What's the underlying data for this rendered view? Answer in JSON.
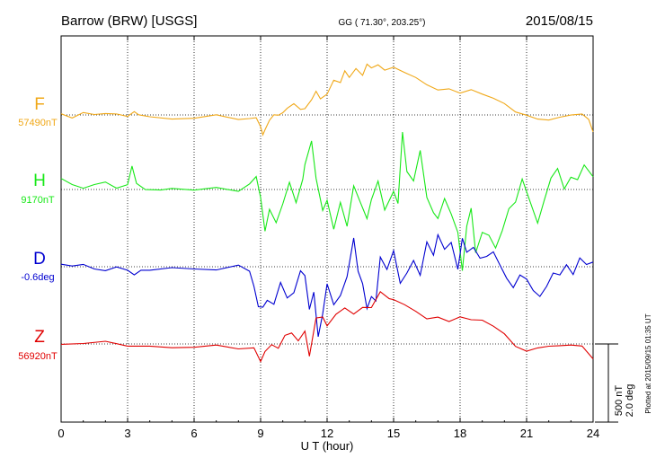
{
  "header": {
    "station": "Barrow (BRW)  [USGS]",
    "coords": "GG ( 71.30°, 203.25°)",
    "date": "2015/08/15"
  },
  "footer_note": "Plotted at 2015/09/15 01:35 UT",
  "scale_bar": {
    "line1": "500 nT",
    "line2": "2.0 deg",
    "value_nT": 500,
    "value_deg": 2.0
  },
  "chart_data": {
    "type": "line",
    "xlabel": "U T (hour)",
    "xlim": [
      0,
      24
    ],
    "x_ticks": [
      0,
      3,
      6,
      9,
      12,
      15,
      18,
      21,
      24
    ],
    "x_tick_labels": [
      "0",
      "3",
      "6",
      "9",
      "12",
      "15",
      "18",
      "21",
      "24"
    ],
    "grid": true,
    "series": [
      {
        "name": "F",
        "baseline_label": "57490nT",
        "baseline": 57490,
        "unit": "nT",
        "color": "#F0A818",
        "points": [
          [
            0,
            -10
          ],
          [
            0.5,
            -5
          ],
          [
            1,
            0
          ],
          [
            1.5,
            5
          ],
          [
            2,
            5
          ],
          [
            2.5,
            5
          ],
          [
            3,
            -5
          ],
          [
            3.3,
            10
          ],
          [
            3.5,
            -5
          ],
          [
            4,
            -10
          ],
          [
            5,
            -10
          ],
          [
            6,
            -10
          ],
          [
            7,
            -10
          ],
          [
            8,
            -12
          ],
          [
            8.5,
            -12
          ],
          [
            8.8,
            -20
          ],
          [
            9,
            -60
          ],
          [
            9.1,
            -130
          ],
          [
            9.2,
            -90
          ],
          [
            9.4,
            -40
          ],
          [
            9.6,
            10
          ],
          [
            9.8,
            0
          ],
          [
            10,
            20
          ],
          [
            10.2,
            40
          ],
          [
            10.5,
            60
          ],
          [
            10.8,
            30
          ],
          [
            11,
            40
          ],
          [
            11.3,
            80
          ],
          [
            11.5,
            140
          ],
          [
            11.7,
            100
          ],
          [
            12,
            150
          ],
          [
            12.3,
            230
          ],
          [
            12.6,
            200
          ],
          [
            12.8,
            280
          ],
          [
            13,
            230
          ],
          [
            13.3,
            300
          ],
          [
            13.6,
            270
          ],
          [
            13.8,
            340
          ],
          [
            14,
            300
          ],
          [
            14.3,
            330
          ],
          [
            14.6,
            290
          ],
          [
            15,
            320
          ],
          [
            15.5,
            270
          ],
          [
            16,
            230
          ],
          [
            16.5,
            200
          ],
          [
            17,
            170
          ],
          [
            17.5,
            160
          ],
          [
            18,
            140
          ],
          [
            18.5,
            150
          ],
          [
            19,
            120
          ],
          [
            19.5,
            100
          ],
          [
            20,
            60
          ],
          [
            20.5,
            30
          ],
          [
            21,
            0
          ],
          [
            21.5,
            -30
          ],
          [
            22,
            -20
          ],
          [
            22.5,
            -15
          ],
          [
            23,
            -10
          ],
          [
            23.5,
            0
          ],
          [
            23.8,
            -40
          ],
          [
            24,
            -120
          ]
        ]
      },
      {
        "name": "H",
        "baseline_label": "9170nT",
        "baseline": 9170,
        "unit": "nT",
        "color": "#18E818",
        "points": [
          [
            0,
            60
          ],
          [
            0.5,
            40
          ],
          [
            1,
            10
          ],
          [
            1.5,
            30
          ],
          [
            2,
            40
          ],
          [
            2.5,
            20
          ],
          [
            3,
            40
          ],
          [
            3.2,
            150
          ],
          [
            3.4,
            40
          ],
          [
            3.8,
            0
          ],
          [
            4.5,
            -20
          ],
          [
            5,
            10
          ],
          [
            6,
            0
          ],
          [
            7,
            10
          ],
          [
            8,
            0
          ],
          [
            8.5,
            30
          ],
          [
            8.8,
            80
          ],
          [
            9,
            -60
          ],
          [
            9.2,
            -250
          ],
          [
            9.4,
            -120
          ],
          [
            9.7,
            -200
          ],
          [
            10,
            -80
          ],
          [
            10.3,
            30
          ],
          [
            10.6,
            -80
          ],
          [
            10.9,
            80
          ],
          [
            11,
            150
          ],
          [
            11.3,
            320
          ],
          [
            11.5,
            60
          ],
          [
            11.8,
            -120
          ],
          [
            12,
            -80
          ],
          [
            12.3,
            -260
          ],
          [
            12.6,
            -80
          ],
          [
            12.9,
            -240
          ],
          [
            13.2,
            20
          ],
          [
            13.5,
            -80
          ],
          [
            13.8,
            -200
          ],
          [
            14,
            -60
          ],
          [
            14.3,
            70
          ],
          [
            14.6,
            -140
          ],
          [
            15,
            -20
          ],
          [
            15.2,
            -80
          ],
          [
            15.4,
            380
          ],
          [
            15.6,
            120
          ],
          [
            15.9,
            40
          ],
          [
            16.2,
            250
          ],
          [
            16.5,
            -40
          ],
          [
            16.8,
            -140
          ],
          [
            17,
            -200
          ],
          [
            17.3,
            -60
          ],
          [
            17.6,
            -140
          ],
          [
            17.9,
            -260
          ],
          [
            18.1,
            -520
          ],
          [
            18.3,
            -240
          ],
          [
            18.5,
            -120
          ],
          [
            18.7,
            -420
          ],
          [
            19,
            -260
          ],
          [
            19.3,
            -300
          ],
          [
            19.6,
            -380
          ],
          [
            19.9,
            -260
          ],
          [
            20.2,
            -120
          ],
          [
            20.5,
            -80
          ],
          [
            20.8,
            60
          ],
          [
            21.1,
            -40
          ],
          [
            21.5,
            -200
          ],
          [
            21.8,
            -80
          ],
          [
            22.1,
            80
          ],
          [
            22.4,
            120
          ],
          [
            22.7,
            20
          ],
          [
            23,
            80
          ],
          [
            23.3,
            60
          ],
          [
            23.6,
            160
          ],
          [
            24,
            80
          ]
        ]
      },
      {
        "name": "D",
        "baseline_label": "-0.6deg",
        "baseline": -0.6,
        "unit": "deg",
        "color": "#0000D0",
        "points": [
          [
            0,
            0
          ],
          [
            0.5,
            -10
          ],
          [
            1,
            10
          ],
          [
            1.5,
            -20
          ],
          [
            2,
            -10
          ],
          [
            2.5,
            0
          ],
          [
            3,
            -20
          ],
          [
            3.3,
            -50
          ],
          [
            3.6,
            -20
          ],
          [
            4,
            -20
          ],
          [
            5,
            -10
          ],
          [
            6,
            0
          ],
          [
            7,
            -10
          ],
          [
            8,
            0
          ],
          [
            8.5,
            -20
          ],
          [
            8.7,
            -120
          ],
          [
            8.9,
            -240
          ],
          [
            9.1,
            -260
          ],
          [
            9.3,
            -200
          ],
          [
            9.6,
            -240
          ],
          [
            9.9,
            -100
          ],
          [
            10.2,
            -200
          ],
          [
            10.5,
            -180
          ],
          [
            10.8,
            -40
          ],
          [
            11,
            -60
          ],
          [
            11.2,
            -260
          ],
          [
            11.4,
            -160
          ],
          [
            11.6,
            -460
          ],
          [
            11.8,
            -300
          ],
          [
            12,
            -100
          ],
          [
            12.3,
            -260
          ],
          [
            12.6,
            -180
          ],
          [
            12.9,
            -80
          ],
          [
            13.2,
            180
          ],
          [
            13.4,
            -40
          ],
          [
            13.6,
            -100
          ],
          [
            13.8,
            -260
          ],
          [
            14,
            -180
          ],
          [
            14.2,
            -220
          ],
          [
            14.4,
            60
          ],
          [
            14.7,
            -20
          ],
          [
            15,
            100
          ],
          [
            15.3,
            -120
          ],
          [
            15.6,
            -40
          ],
          [
            15.9,
            40
          ],
          [
            16.2,
            -40
          ],
          [
            16.5,
            150
          ],
          [
            16.8,
            90
          ],
          [
            17,
            210
          ],
          [
            17.3,
            120
          ],
          [
            17.6,
            160
          ],
          [
            17.9,
            -20
          ],
          [
            18.1,
            180
          ],
          [
            18.3,
            80
          ],
          [
            18.6,
            120
          ],
          [
            18.9,
            60
          ],
          [
            19.2,
            80
          ],
          [
            19.5,
            100
          ],
          [
            19.8,
            0
          ],
          [
            20.1,
            -60
          ],
          [
            20.4,
            -120
          ],
          [
            20.7,
            -40
          ],
          [
            21,
            -80
          ],
          [
            21.3,
            -160
          ],
          [
            21.6,
            -180
          ],
          [
            21.9,
            -120
          ],
          [
            22.2,
            -40
          ],
          [
            22.5,
            -60
          ],
          [
            22.8,
            20
          ],
          [
            23.1,
            -40
          ],
          [
            23.4,
            60
          ],
          [
            23.7,
            20
          ],
          [
            24,
            40
          ]
        ]
      },
      {
        "name": "Z",
        "baseline_label": "56920nT",
        "baseline": 56920,
        "unit": "nT",
        "color": "#E00000",
        "points": [
          [
            0,
            -10
          ],
          [
            1,
            0
          ],
          [
            2,
            10
          ],
          [
            3,
            0
          ],
          [
            4,
            -10
          ],
          [
            5,
            -10
          ],
          [
            6,
            -15
          ],
          [
            7,
            -20
          ],
          [
            8,
            -20
          ],
          [
            8.7,
            -40
          ],
          [
            9,
            -120
          ],
          [
            9.2,
            -40
          ],
          [
            9.5,
            0
          ],
          [
            9.8,
            -40
          ],
          [
            10.1,
            40
          ],
          [
            10.4,
            60
          ],
          [
            10.7,
            20
          ],
          [
            11,
            80
          ],
          [
            11.2,
            -90
          ],
          [
            11.5,
            150
          ],
          [
            11.8,
            160
          ],
          [
            12,
            120
          ],
          [
            12.4,
            200
          ],
          [
            12.8,
            220
          ],
          [
            13.2,
            180
          ],
          [
            13.6,
            220
          ],
          [
            14,
            250
          ],
          [
            14.4,
            320
          ],
          [
            14.8,
            300
          ],
          [
            15,
            280
          ],
          [
            15.5,
            260
          ],
          [
            16,
            220
          ],
          [
            16.5,
            160
          ],
          [
            17,
            160
          ],
          [
            17.5,
            140
          ],
          [
            18,
            180
          ],
          [
            18.5,
            170
          ],
          [
            19,
            140
          ],
          [
            19.5,
            120
          ],
          [
            20,
            60
          ],
          [
            20.5,
            -20
          ],
          [
            21,
            -40
          ],
          [
            21.5,
            -40
          ],
          [
            22,
            -30
          ],
          [
            22.5,
            -20
          ],
          [
            23,
            -10
          ],
          [
            23.5,
            -20
          ],
          [
            24,
            -100
          ]
        ]
      }
    ]
  }
}
